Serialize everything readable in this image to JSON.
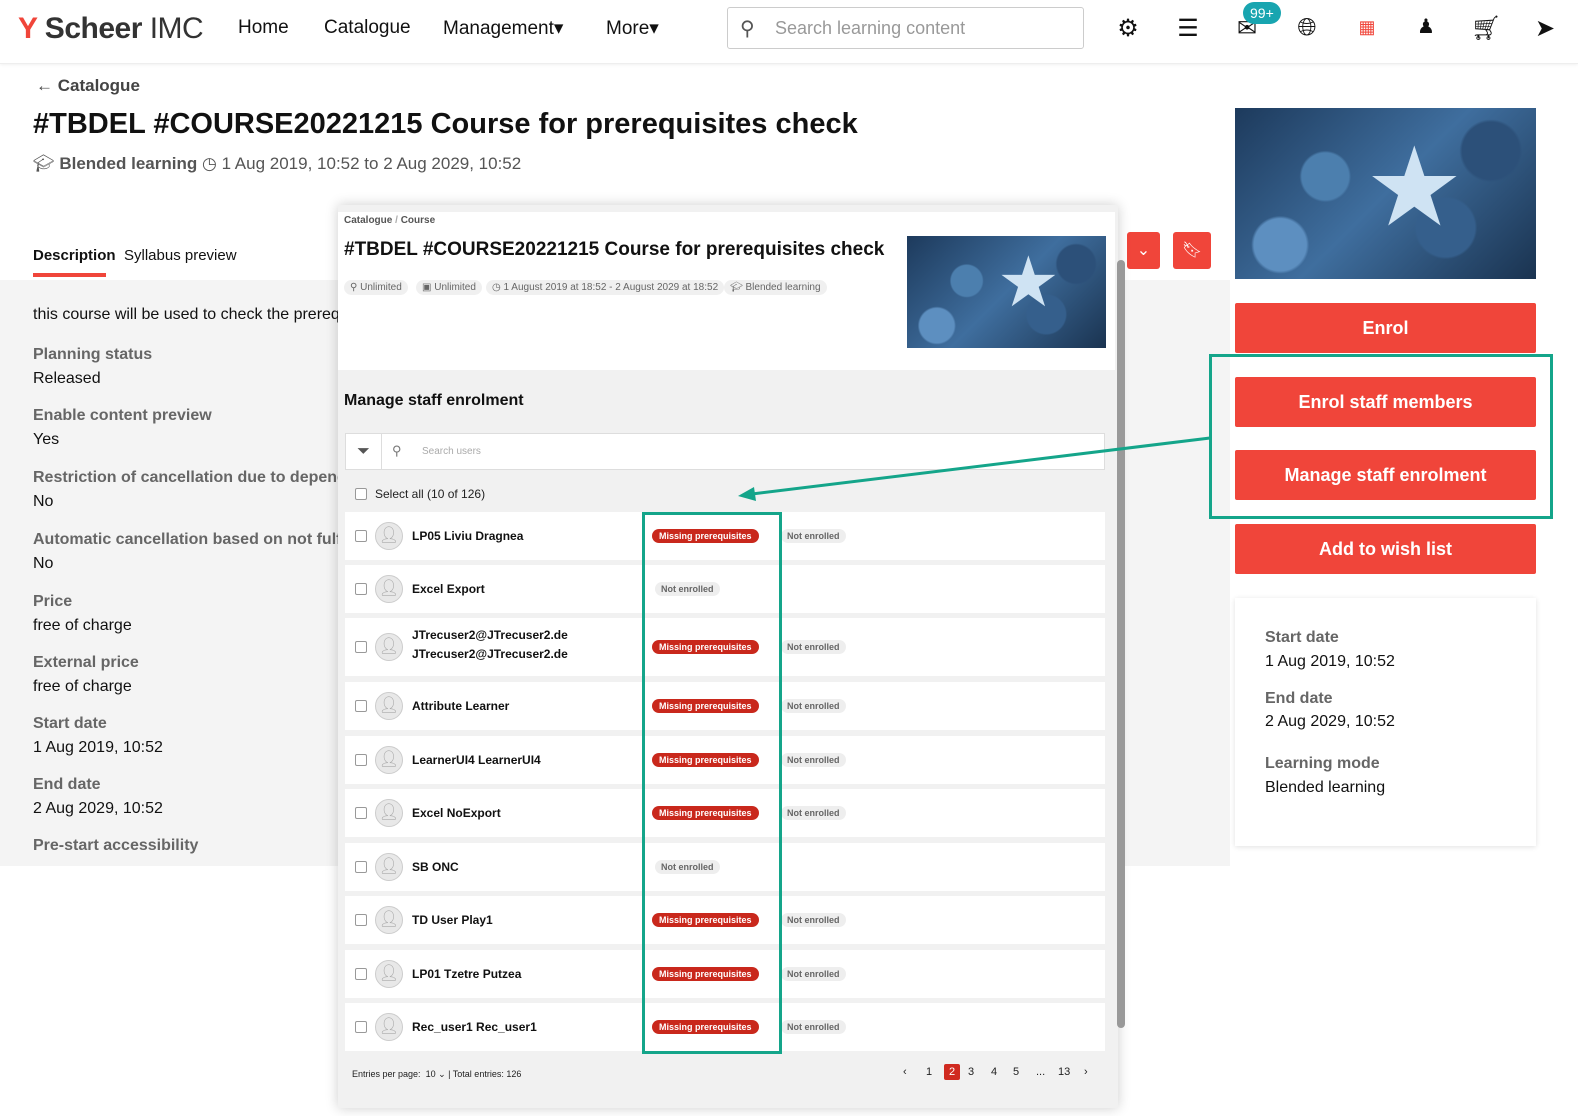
{
  "nav": {
    "logo": "Scheer IMC",
    "logo_mark": "Y",
    "items": [
      "Home",
      "Catalogue",
      "Management▾",
      "More▾"
    ],
    "search_placeholder": "Search learning content",
    "badge": "99+"
  },
  "page": {
    "back": "← Catalogue",
    "title": "#TBDEL #COURSE20221215 Course for prerequisites check",
    "mode": "Blended learning",
    "dates": "1 Aug 2019, 10:52 to 2 Aug 2029, 10:52",
    "tabs": [
      "Description",
      "Syllabus preview"
    ],
    "description": "this course will be used to check the prerequ",
    "fields": [
      {
        "label": "Planning status",
        "value": "Released"
      },
      {
        "label": "Enable content preview",
        "value": "Yes"
      },
      {
        "label": "Restriction of cancellation due to depender",
        "value": "No"
      },
      {
        "label": "Automatic cancellation based on not fulfille",
        "value": "No"
      },
      {
        "label": "Price",
        "value": "free of charge"
      },
      {
        "label": "External price",
        "value": "free of charge"
      },
      {
        "label": "Start date",
        "value": "1 Aug 2019, 10:52"
      },
      {
        "label": "End date",
        "value": "2 Aug 2029, 10:52"
      },
      {
        "label": "Pre-start accessibility",
        "value": ""
      }
    ]
  },
  "side": {
    "buttons": [
      "Enrol",
      "Enrol staff members",
      "Manage staff enrolment",
      "Add to wish list"
    ],
    "card": [
      {
        "label": "Start date",
        "value": "1 Aug 2019, 10:52"
      },
      {
        "label": "End date",
        "value": "2 Aug 2029, 10:52"
      },
      {
        "label": "Learning mode",
        "value": "Blended learning"
      }
    ]
  },
  "modal": {
    "breadcrumb": [
      "Catalogue",
      "Course"
    ],
    "title": "#TBDEL #COURSE20221215 Course for prerequisites check",
    "chips": [
      "Unlimited",
      "Unlimited",
      "1 August 2019 at 18:52 - 2 August 2029 at 18:52",
      "Blended learning"
    ],
    "section": "Manage staff enrolment",
    "search_placeholder": "Search users",
    "select_all": "Select all (10 of 126)",
    "status_missing": "Missing prerequisites",
    "status_not": "Not enrolled",
    "users": [
      {
        "name": "LP05 Liviu Dragnea",
        "missing": true
      },
      {
        "name": "Excel Export",
        "missing": false
      },
      {
        "name": "JTrecuser2@JTrecuser2.de JTrecuser2@JTrecuser2.de",
        "missing": true
      },
      {
        "name": "Attribute Learner",
        "missing": true
      },
      {
        "name": "LearnerUI4 LearnerUI4",
        "missing": true
      },
      {
        "name": "Excel NoExport",
        "missing": true
      },
      {
        "name": "SB ONC",
        "missing": false
      },
      {
        "name": "TD User Play1",
        "missing": true
      },
      {
        "name": "LP01 Tzetre Putzea",
        "missing": true
      },
      {
        "name": "Rec_user1 Rec_user1",
        "missing": true
      }
    ],
    "footer": {
      "entries_label": "Entries per page:",
      "entries_value": "10",
      "total": "| Total entries: 126",
      "pages": [
        "1",
        "2",
        "3",
        "4",
        "5",
        "...",
        "13"
      ],
      "current_page": "2"
    }
  },
  "colors": {
    "accent": "#f0453a",
    "annotation": "#14a58a",
    "badge": "#18a5b0"
  }
}
